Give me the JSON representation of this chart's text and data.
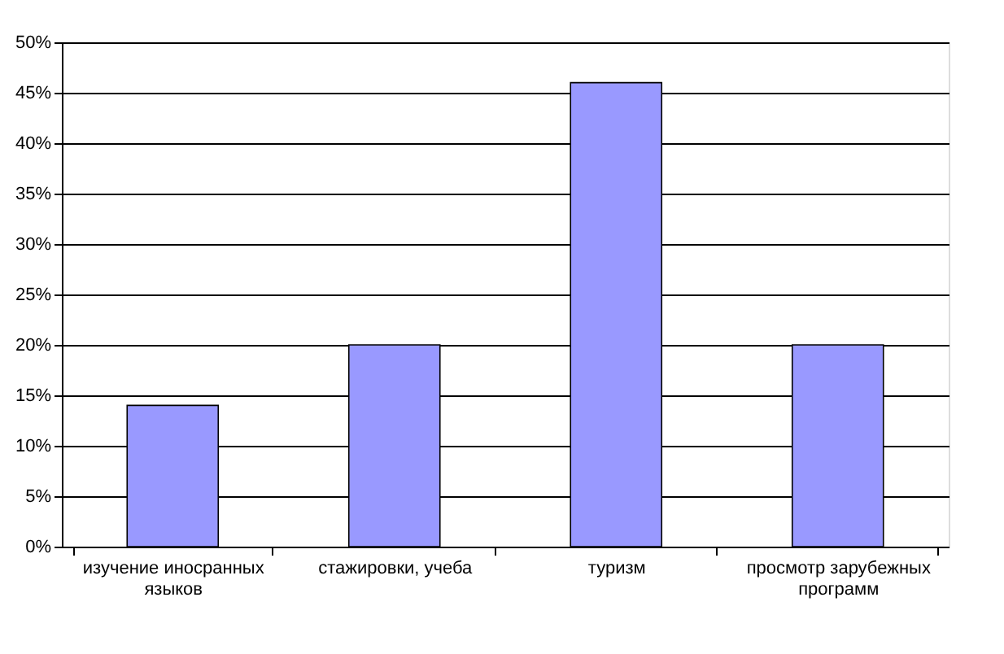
{
  "chart_data": {
    "type": "bar",
    "categories": [
      "изучение иносранных языков",
      "стажировки, учеба",
      "туризм",
      "просмотр зарубежных программ"
    ],
    "values": [
      14,
      20,
      46,
      20
    ],
    "color": "#9999ff",
    "ylim": [
      0,
      50
    ],
    "yticks": [
      {
        "value": 0,
        "label": "0%"
      },
      {
        "value": 5,
        "label": "5%"
      },
      {
        "value": 10,
        "label": "10%"
      },
      {
        "value": 15,
        "label": "15%"
      },
      {
        "value": 20,
        "label": "20%"
      },
      {
        "value": 25,
        "label": "25%"
      },
      {
        "value": 30,
        "label": "30%"
      },
      {
        "value": 35,
        "label": "35%"
      },
      {
        "value": 40,
        "label": "40%"
      },
      {
        "value": 45,
        "label": "45%"
      },
      {
        "value": 50,
        "label": "50%"
      }
    ],
    "grid": "y"
  }
}
